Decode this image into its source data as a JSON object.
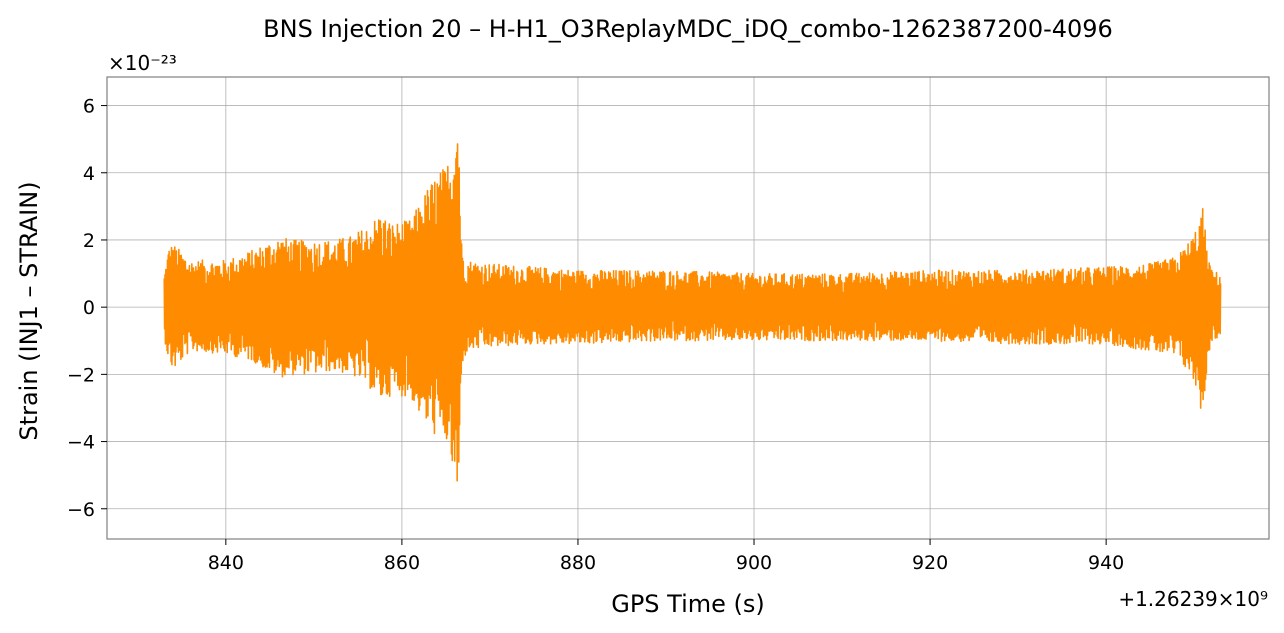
{
  "chart_data": {
    "type": "line",
    "title": "BNS Injection 20 – H-H1_O3ReplayMDC_iDQ_combo-1262387200-4096",
    "xlabel": "GPS Time (s)",
    "ylabel": "Strain (INJ1 – STRAIN)",
    "x_offset_text": "+1.26239×10⁹",
    "y_scale_text": "×10⁻²³",
    "xlim": [
      826.5,
      958.5
    ],
    "ylim": [
      -6.9,
      6.85
    ],
    "xticks": [
      840,
      860,
      880,
      900,
      920,
      940
    ],
    "yticks": [
      -6,
      -4,
      -2,
      0,
      2,
      4,
      6
    ],
    "ytick_labels": [
      "−6",
      "−4",
      "−2",
      "0",
      "2",
      "4",
      "6"
    ],
    "grid": true,
    "series": [
      {
        "color": "#ff8c00",
        "x_range": [
          833,
          953
        ],
        "envelope": {
          "t": [
            833,
            833.5,
            834,
            836,
            840,
            843,
            846,
            848,
            850,
            852,
            854,
            856,
            857.5,
            859,
            861,
            862,
            863,
            864,
            865,
            865.5,
            866,
            866.4,
            866.8,
            867.5,
            870,
            875,
            880,
            890,
            900,
            910,
            920,
            930,
            940,
            945,
            948,
            949.5,
            950.5,
            951,
            951.5,
            952,
            953
          ],
          "upper": [
            1.0,
            1.8,
            1.9,
            1.4,
            1.4,
            1.7,
            2.1,
            2.0,
            2.0,
            2.0,
            2.1,
            2.4,
            2.8,
            2.5,
            2.6,
            3.1,
            3.6,
            4.0,
            4.2,
            4.6,
            5.5,
            6.2,
            1.8,
            1.4,
            1.3,
            1.2,
            1.1,
            1.1,
            1.0,
            1.0,
            1.1,
            1.1,
            1.2,
            1.3,
            1.5,
            2.0,
            2.5,
            3.0,
            1.6,
            1.1,
            1.0
          ],
          "lower": [
            -0.9,
            -1.6,
            -1.9,
            -1.3,
            -1.4,
            -1.6,
            -2.1,
            -2.0,
            -2.0,
            -1.9,
            -2.0,
            -2.3,
            -2.8,
            -2.6,
            -2.7,
            -3.2,
            -3.6,
            -3.9,
            -4.0,
            -4.6,
            -5.2,
            -6.3,
            -1.7,
            -1.3,
            -1.2,
            -1.1,
            -1.1,
            -1.0,
            -1.0,
            -1.0,
            -1.0,
            -1.1,
            -1.1,
            -1.3,
            -1.5,
            -2.0,
            -2.6,
            -3.5,
            -1.6,
            -1.0,
            -0.9
          ]
        }
      }
    ]
  }
}
